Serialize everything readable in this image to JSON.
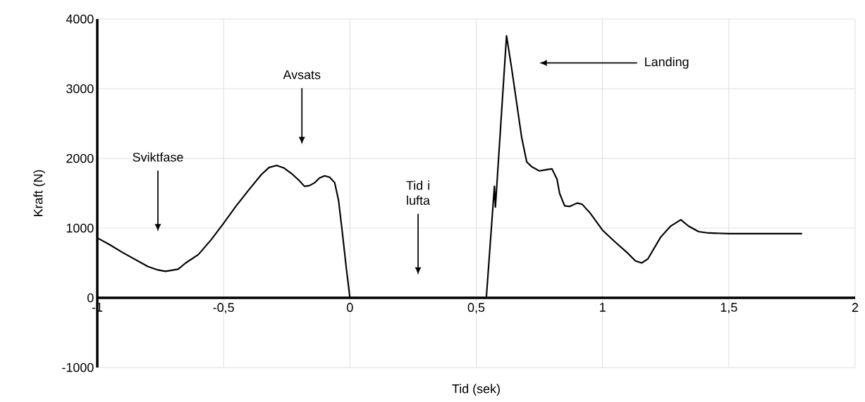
{
  "chart_data": {
    "type": "line",
    "xlabel": "Tid (sek)",
    "ylabel": "Kraft (N)",
    "xlim": [
      -1,
      2
    ],
    "ylim": [
      -1000,
      4000
    ],
    "xticks": [
      -1,
      {
        "value": -0.5,
        "label": "-0,5"
      },
      0,
      {
        "value": 0.5,
        "label": "0,5"
      },
      1,
      {
        "value": 1.5,
        "label": "1,5"
      },
      2
    ],
    "yticks": [
      -1000,
      0,
      1000,
      2000,
      3000,
      4000
    ],
    "grid": true,
    "marker": "none",
    "line_style": "solid",
    "series": [
      {
        "color": "#000000",
        "x": [
          -1,
          -0.95,
          -0.9,
          -0.85,
          -0.8,
          -0.76,
          -0.73,
          -0.68,
          -0.65,
          -0.6,
          -0.55,
          -0.5,
          -0.45,
          -0.4,
          -0.35,
          -0.32,
          -0.29,
          -0.26,
          -0.23,
          -0.2,
          -0.18,
          -0.16,
          -0.14,
          -0.12,
          -0.1,
          -0.08,
          -0.06,
          -0.045,
          -0.03,
          -0.015,
          0,
          0.27,
          0.54,
          0.572,
          0.576,
          0.62,
          0.64,
          0.66,
          0.68,
          0.7,
          0.72,
          0.75,
          0.78,
          0.8,
          0.82,
          0.83,
          0.85,
          0.87,
          0.9,
          0.92,
          0.95,
          1.0,
          1.05,
          1.1,
          1.13,
          1.155,
          1.18,
          1.23,
          1.27,
          1.31,
          1.34,
          1.38,
          1.42,
          1.5,
          1.79
        ],
        "values": [
          860,
          760,
          650,
          550,
          450,
          400,
          380,
          410,
          500,
          620,
          830,
          1070,
          1320,
          1550,
          1770,
          1870,
          1900,
          1860,
          1780,
          1680,
          1600,
          1610,
          1650,
          1720,
          1750,
          1730,
          1650,
          1400,
          940,
          450,
          0,
          0,
          0,
          1600,
          1300,
          3760,
          3300,
          2800,
          2300,
          1950,
          1880,
          1820,
          1840,
          1850,
          1700,
          1500,
          1320,
          1310,
          1360,
          1340,
          1220,
          970,
          800,
          640,
          530,
          500,
          560,
          870,
          1030,
          1120,
          1030,
          950,
          930,
          920,
          920
        ]
      }
    ],
    "annotations": [
      "Sviktfase",
      "Avsats",
      "Tid i lufta",
      "Landing"
    ]
  }
}
